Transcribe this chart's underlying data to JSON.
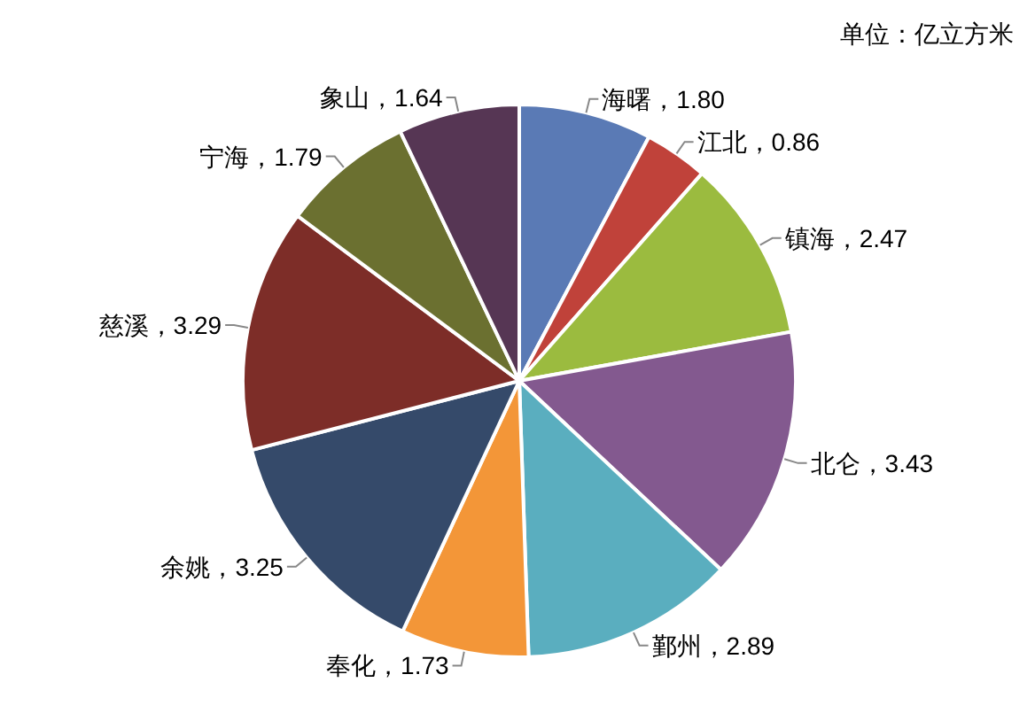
{
  "chart_data": {
    "type": "pie",
    "categories": [
      "海曙",
      "江北",
      "镇海",
      "北仑",
      "鄞州",
      "奉化",
      "余姚",
      "慈溪",
      "宁海",
      "象山"
    ],
    "values": [
      1.8,
      0.86,
      2.47,
      3.43,
      2.89,
      1.73,
      3.25,
      3.29,
      1.79,
      1.64
    ],
    "value_labels": [
      "，1.80",
      "，0.86",
      "，2.47",
      "，3.43",
      "，2.89",
      "，1.73",
      "，3.25",
      "，3.29",
      "，1.79",
      "，1.64"
    ],
    "colors": [
      "#5a7ab5",
      "#c0423a",
      "#9bbb3f",
      "#83598f",
      "#5aaebf",
      "#f39638",
      "#354a6a",
      "#7d2d28",
      "#6b7030",
      "#563654"
    ],
    "annotations": [
      "单位：亿立方米"
    ]
  }
}
